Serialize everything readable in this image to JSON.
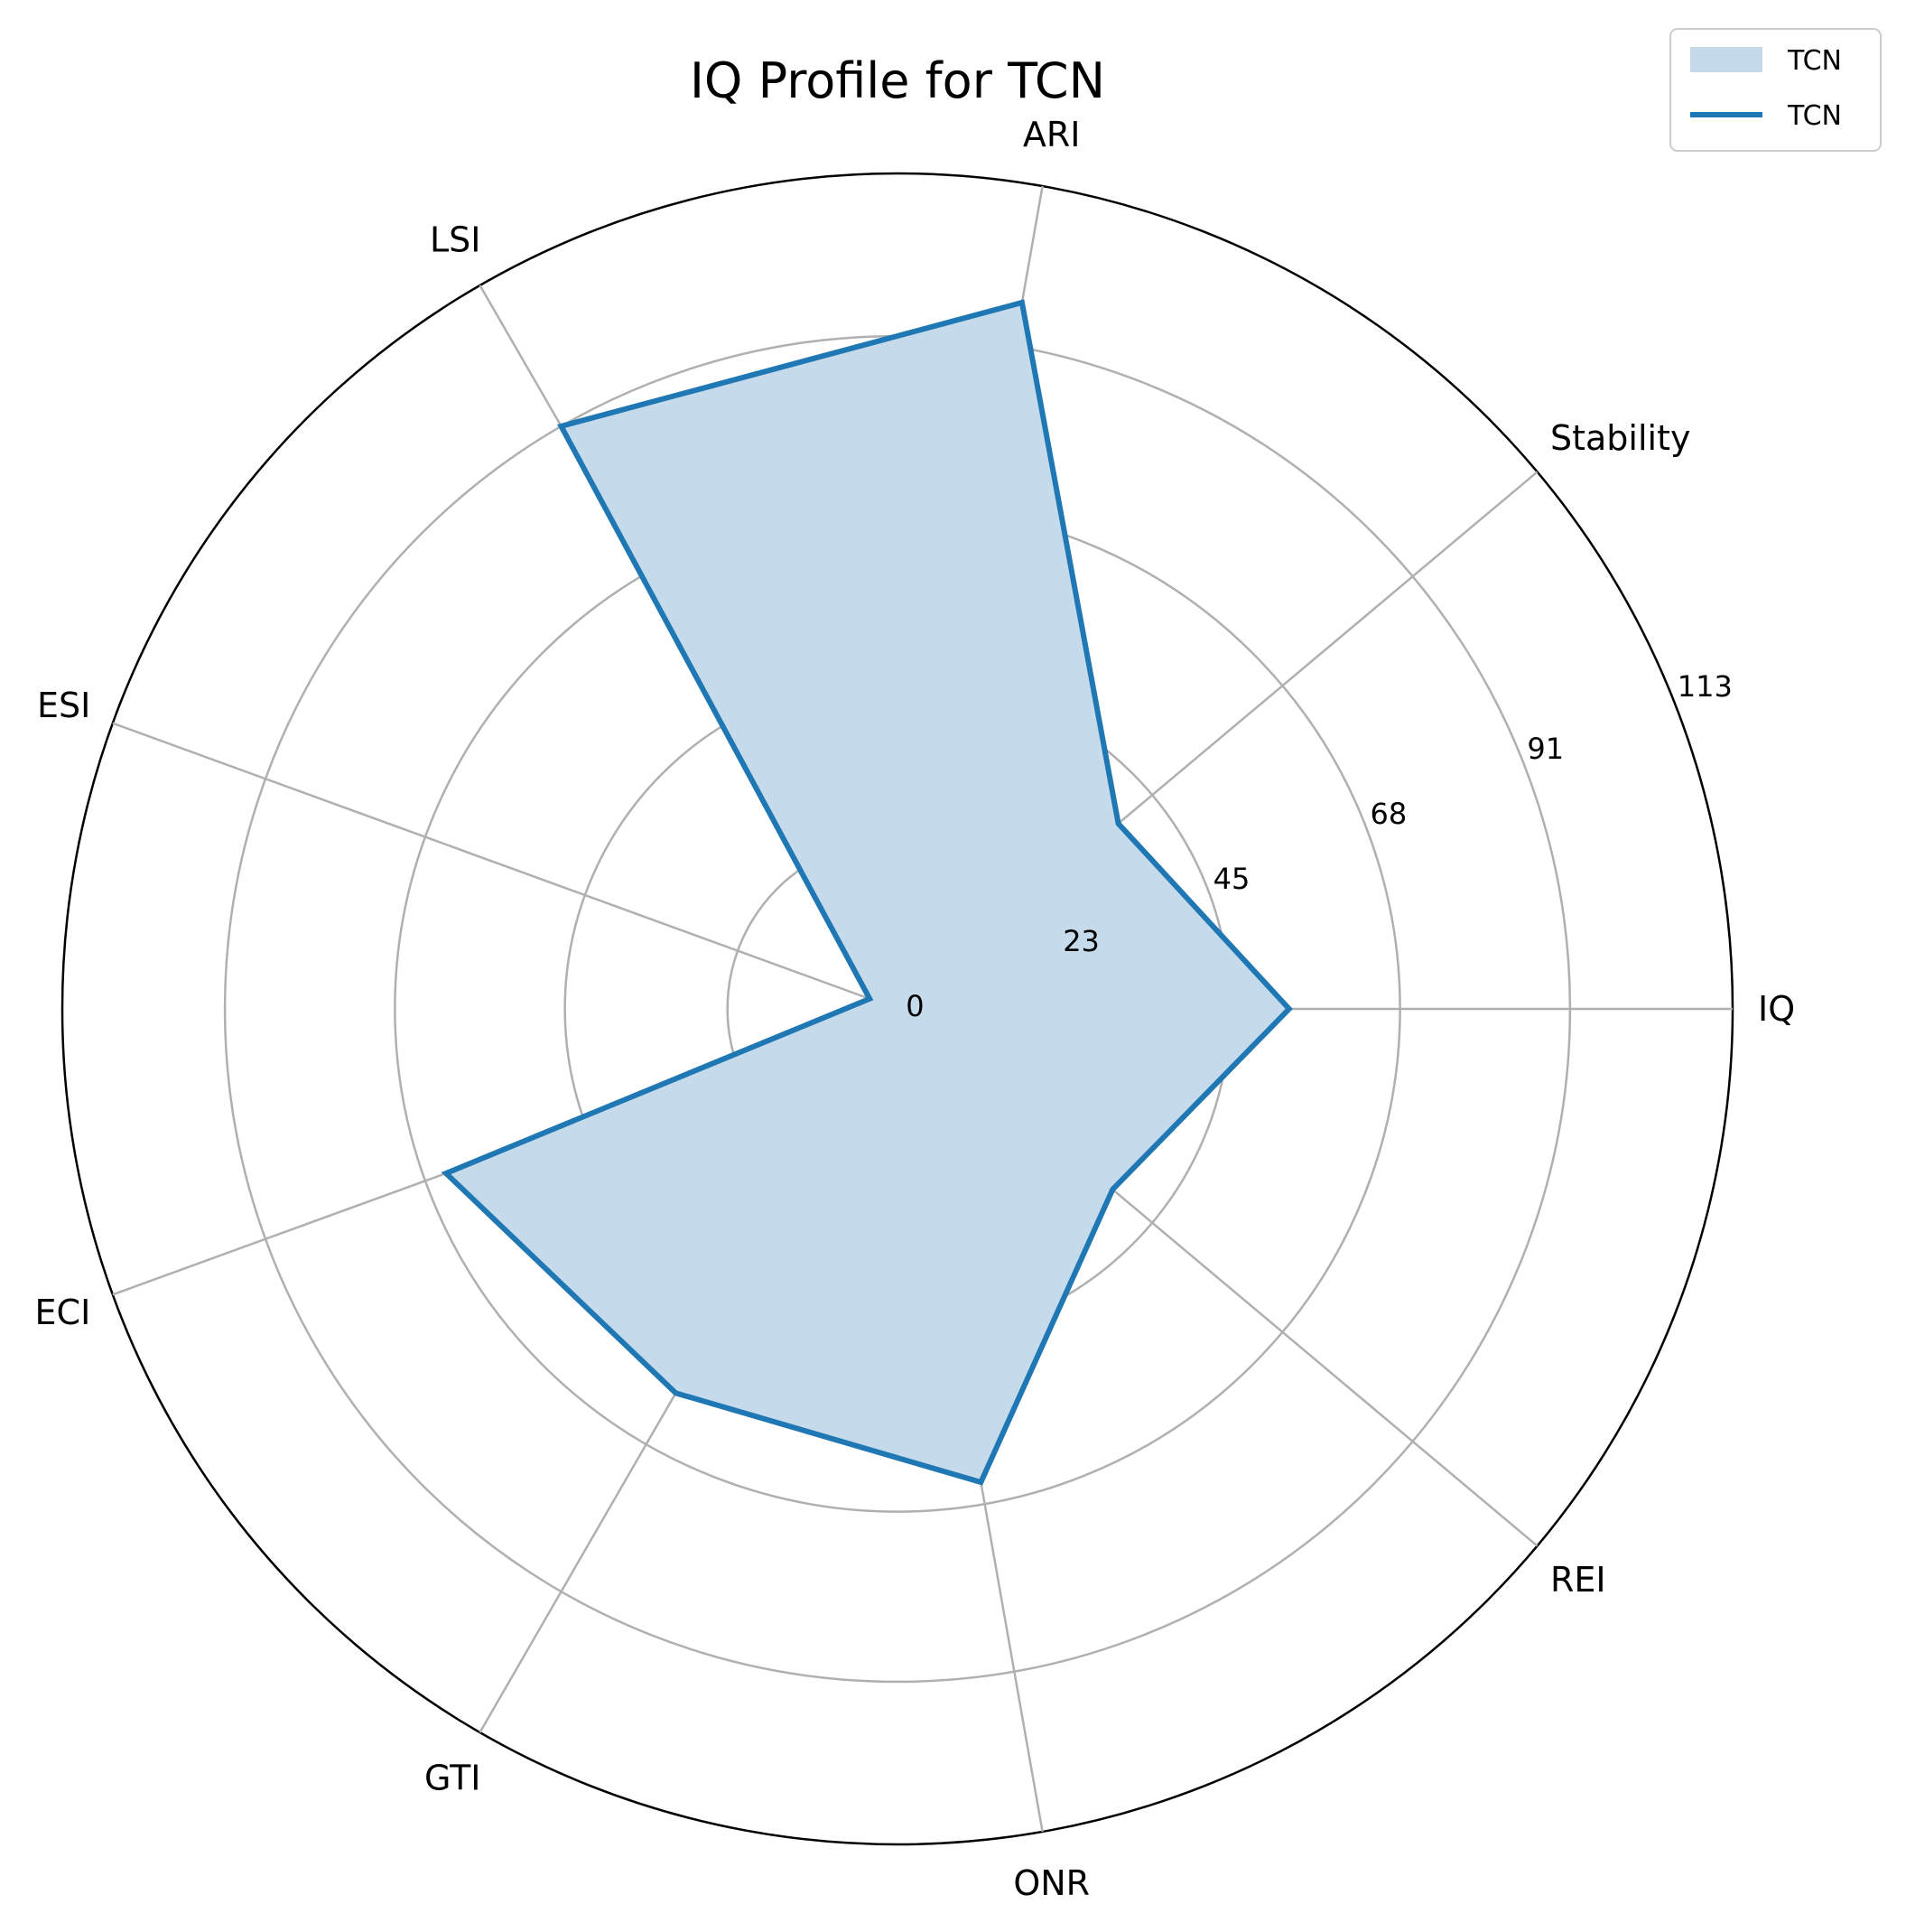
{
  "chart_data": {
    "type": "radar",
    "title": "IQ Profile for TCN",
    "categories": [
      "IQ",
      "Stability",
      "ARI",
      "LSI",
      "ESI",
      "ECI",
      "GTI",
      "ONR",
      "REI"
    ],
    "series": [
      {
        "name": "TCN",
        "values": [
          53,
          39,
          97,
          91,
          4,
          65,
          60,
          65,
          38
        ]
      }
    ],
    "rlim": [
      0,
      113
    ],
    "r_ticks": [
      0,
      23,
      45,
      68,
      91,
      113
    ],
    "r_tick_labels": [
      "0",
      "23",
      "45",
      "68",
      "91",
      "113"
    ],
    "grid": true,
    "legend": {
      "position": "top-right",
      "entries": [
        {
          "label": "TCN",
          "kind": "fill"
        },
        {
          "label": "TCN",
          "kind": "line"
        }
      ]
    },
    "colors": {
      "series_line": "#1f77b4",
      "series_fill": "#c5dbec",
      "grid": "#b0b0b0",
      "outer_ring": "#000000"
    }
  }
}
